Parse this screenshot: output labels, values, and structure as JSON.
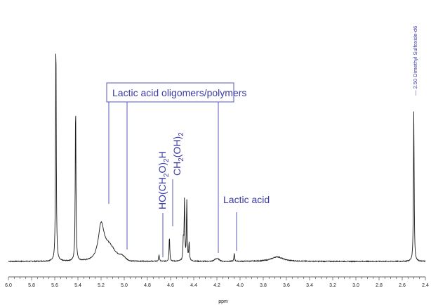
{
  "chart_data": {
    "type": "line",
    "title": "",
    "xlabel": "ppm",
    "ylabel": "",
    "xlim": [
      6.0,
      2.4
    ],
    "x_reversed": true,
    "grid": false,
    "x_ticks": [
      "6.0",
      "5.8",
      "5.6",
      "5.4",
      "5.2",
      "5.0",
      "4.8",
      "4.6",
      "4.4",
      "4.2",
      "4.0",
      "3.8",
      "3.6",
      "3.4",
      "3.2",
      "3.0",
      "2.8",
      "2.6",
      "2.4"
    ],
    "peaks": [
      {
        "ppm": 5.59,
        "height": 1.0
      },
      {
        "ppm": 5.42,
        "height": 0.7
      },
      {
        "ppm": 5.2,
        "height": 0.15
      },
      {
        "ppm": 4.7,
        "height": 0.03
      },
      {
        "ppm": 4.61,
        "height": 0.11
      },
      {
        "ppm": 4.49,
        "height": 0.09
      },
      {
        "ppm": 4.48,
        "height": 0.26
      },
      {
        "ppm": 4.46,
        "height": 0.26
      },
      {
        "ppm": 4.44,
        "height": 0.08
      },
      {
        "ppm": 4.05,
        "height": 0.035
      },
      {
        "ppm": 3.68,
        "height": 0.02
      },
      {
        "ppm": 2.5,
        "height": 0.66
      }
    ],
    "annotations": {
      "oligomers": "Lactic acid oligomers/polymers",
      "lactic_acid": "Lactic acid",
      "hydrate_main": "HO(CH",
      "hydrate_sub2": "2",
      "hydrate_mid": "O)",
      "hydrate_tail": "H",
      "methylene_glycol_main": "CH",
      "methylene_glycol_sub": "2",
      "methylene_glycol_tail": "(OH)",
      "methylene_glycol_sub2": "2",
      "dmso": "2.50 Dimethyl Sulfoxide-d6"
    }
  },
  "colors": {
    "spectrum": "#1a1a1a",
    "annotation": "#3b3ba8",
    "axis": "#333333"
  }
}
